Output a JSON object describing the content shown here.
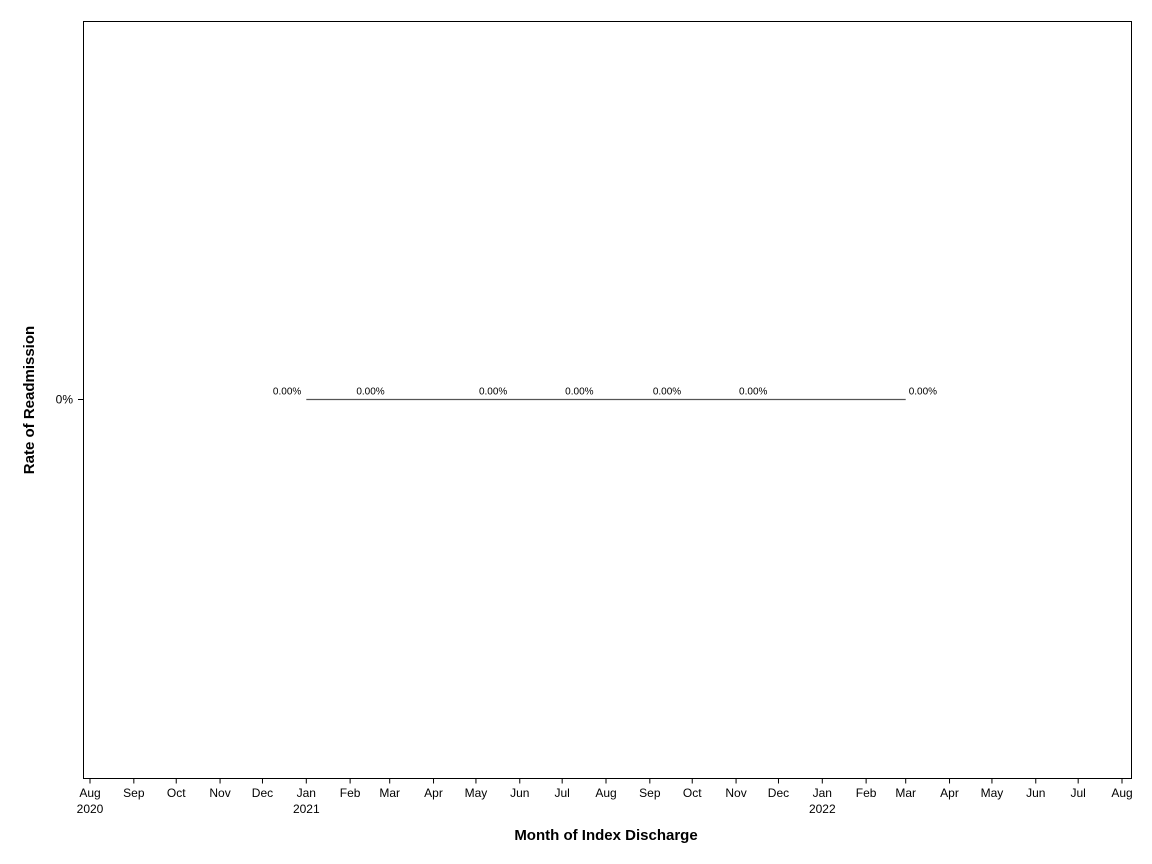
{
  "chart_data": {
    "type": "line",
    "x_label": "Month of Index Discharge",
    "y_label": "Rate of Readmission",
    "x": [
      "2021-01",
      "2021-03",
      "2021-05",
      "2021-07",
      "2021-09",
      "2021-11",
      "2022-03"
    ],
    "series": [
      {
        "color": "#555555",
        "values": [
          0,
          0,
          0,
          0,
          0,
          0,
          0
        ],
        "value_labels": [
          "0.00%",
          "0.00%",
          "0.00%",
          "0.00%",
          "0.00%",
          "0.00%",
          "0.00%"
        ]
      }
    ],
    "xlim": [
      "2020-08",
      "2022-08"
    ],
    "xticks": [
      {
        "value": "2020-08",
        "label": "Aug",
        "sublabel": "2020"
      },
      {
        "value": "2020-09",
        "label": "Sep"
      },
      {
        "value": "2020-10",
        "label": "Oct"
      },
      {
        "value": "2020-11",
        "label": "Nov"
      },
      {
        "value": "2020-12",
        "label": "Dec"
      },
      {
        "value": "2021-01",
        "label": "Jan",
        "sublabel": "2021"
      },
      {
        "value": "2021-02",
        "label": "Feb"
      },
      {
        "value": "2021-03",
        "label": "Mar"
      },
      {
        "value": "2021-04",
        "label": "Apr"
      },
      {
        "value": "2021-05",
        "label": "May"
      },
      {
        "value": "2021-06",
        "label": "Jun"
      },
      {
        "value": "2021-07",
        "label": "Jul"
      },
      {
        "value": "2021-08",
        "label": "Aug"
      },
      {
        "value": "2021-09",
        "label": "Sep"
      },
      {
        "value": "2021-10",
        "label": "Oct"
      },
      {
        "value": "2021-11",
        "label": "Nov"
      },
      {
        "value": "2021-12",
        "label": "Dec"
      },
      {
        "value": "2022-01",
        "label": "Jan",
        "sublabel": "2022"
      },
      {
        "value": "2022-02",
        "label": "Feb"
      },
      {
        "value": "2022-03",
        "label": "Mar"
      },
      {
        "value": "2022-04",
        "label": "Apr"
      },
      {
        "value": "2022-05",
        "label": "May"
      },
      {
        "value": "2022-06",
        "label": "Jun"
      },
      {
        "value": "2022-07",
        "label": "Jul"
      },
      {
        "value": "2022-08",
        "label": "Aug"
      }
    ],
    "ylim": [
      -1,
      1
    ],
    "yticks": [
      {
        "value": 0,
        "label": "0%"
      }
    ]
  }
}
